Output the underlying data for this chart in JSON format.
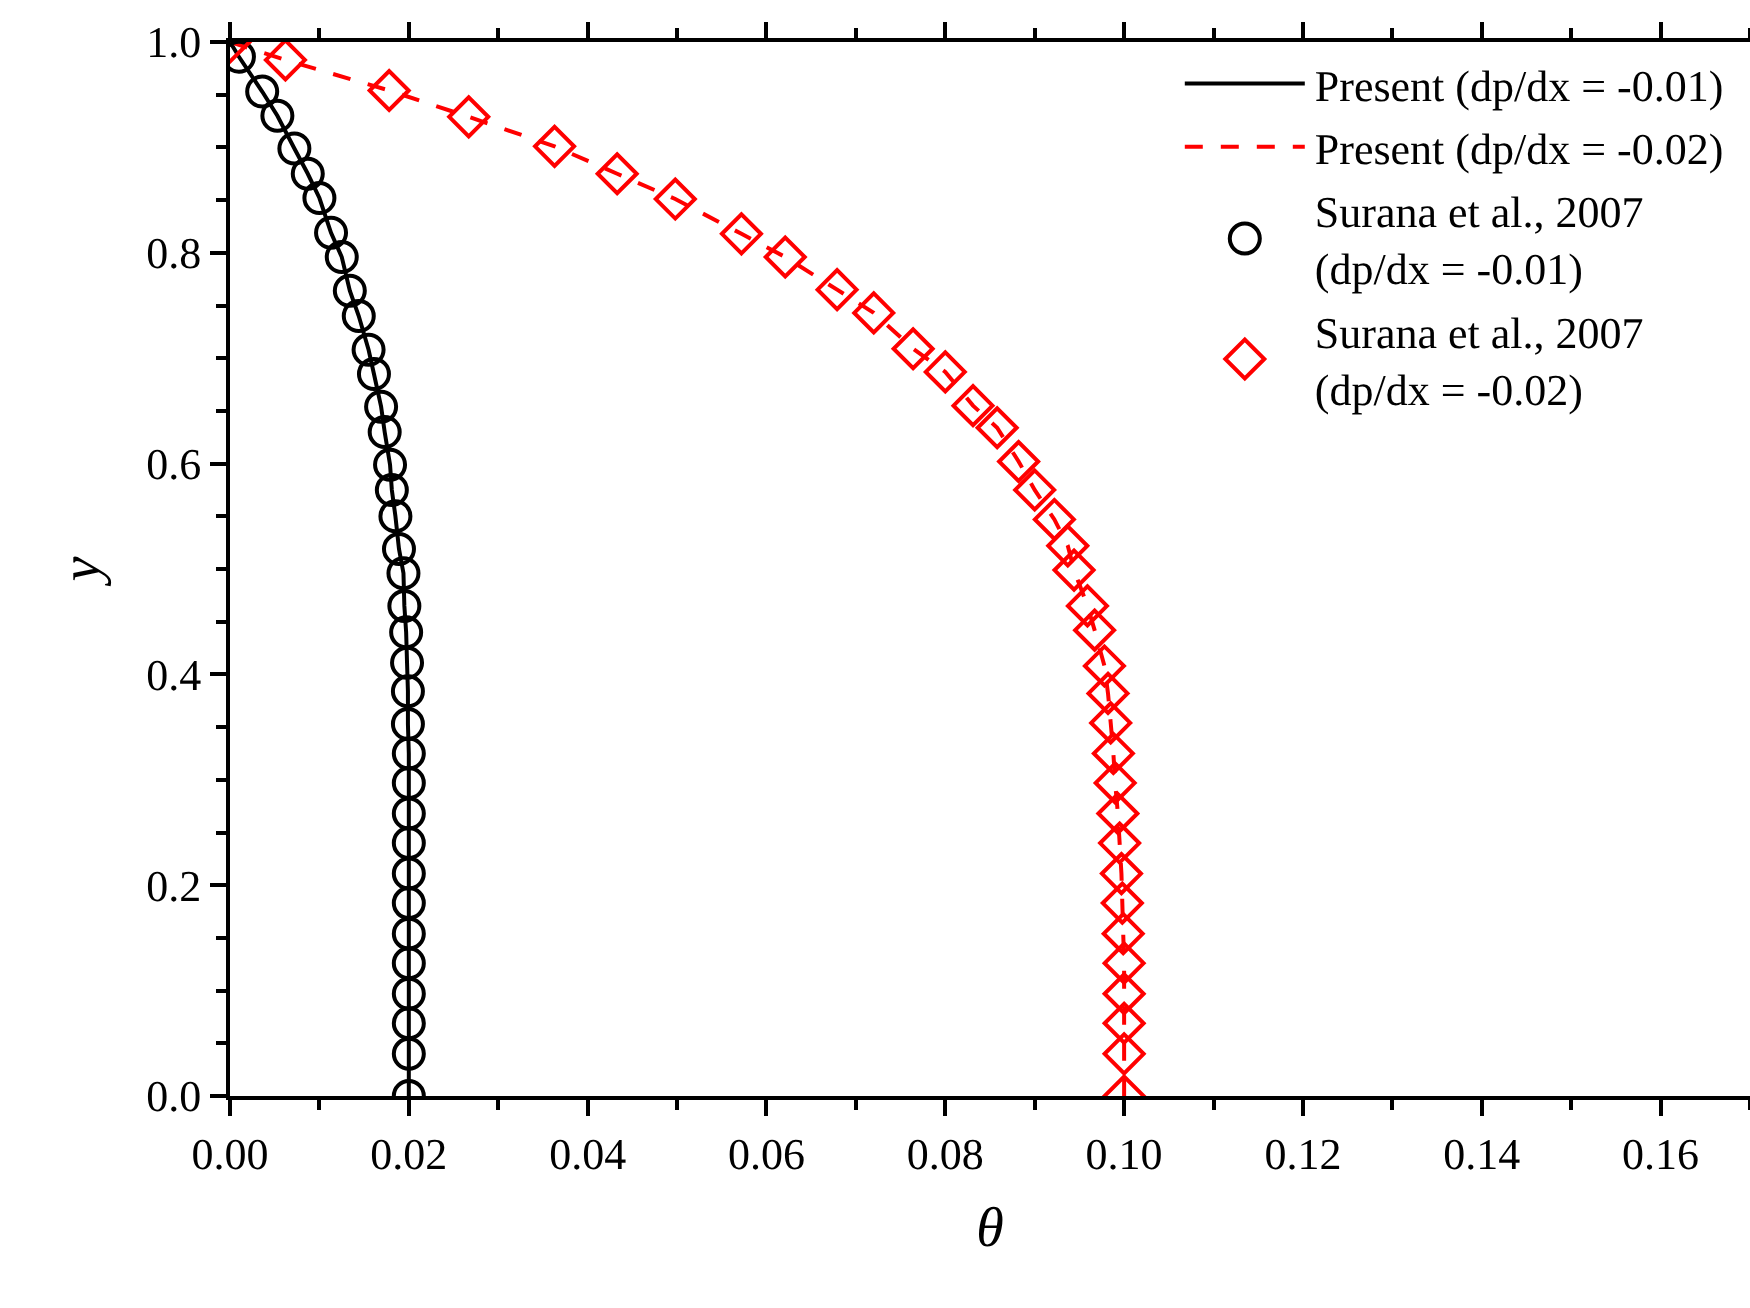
{
  "chart_data": {
    "type": "line",
    "xlabel": "θ",
    "ylabel": "y",
    "xlim": [
      0,
      0.17
    ],
    "ylim": [
      0,
      1.0
    ],
    "xticks": [
      {
        "value": 0,
        "label": "0.00"
      },
      0.02,
      0.04,
      0.06,
      0.08,
      {
        "value": 0.1,
        "label": "0.10"
      },
      0.12,
      0.14,
      0.16
    ],
    "yticks": [
      {
        "value": 0,
        "label": "0.0"
      },
      0.2,
      0.4,
      0.6,
      0.8,
      {
        "value": 1.0,
        "label": "1.0"
      }
    ],
    "grid": false,
    "legend": "top right",
    "series": [
      {
        "name": "Present (dp/dx = -0.01)",
        "line_style": "solid",
        "marker": "none",
        "color": "#000000",
        "x": [
          0,
          0.001,
          0.0036,
          0.0053,
          0.0072,
          0.0087,
          0.01,
          0.0113,
          0.0125,
          0.0134,
          0.0144,
          0.0155,
          0.0161,
          0.0169,
          0.0173,
          0.0179,
          0.0181,
          0.0185,
          0.0189,
          0.0194,
          0.0195,
          0.0197,
          0.0198,
          0.0199,
          0.0199,
          0.02,
          0.02,
          0.02,
          0.02,
          0.02,
          0.02,
          0.02,
          0.02,
          0.02,
          0.02,
          0.02,
          0.02
        ],
        "values": [
          1.0,
          0.986,
          0.953,
          0.93,
          0.899,
          0.875,
          0.852,
          0.819,
          0.796,
          0.764,
          0.74,
          0.708,
          0.685,
          0.654,
          0.63,
          0.599,
          0.575,
          0.55,
          0.519,
          0.496,
          0.465,
          0.44,
          0.411,
          0.384,
          0.353,
          0.325,
          0.297,
          0.268,
          0.24,
          0.211,
          0.183,
          0.154,
          0.126,
          0.097,
          0.069,
          0.04,
          0.0
        ]
      },
      {
        "name": "Present (dp/dx = -0.02)",
        "line_style": "dashed",
        "marker": "none",
        "color": "#ff0000",
        "x": [
          0,
          0.0062,
          0.0178,
          0.0267,
          0.0363,
          0.0433,
          0.0498,
          0.0572,
          0.0621,
          0.0679,
          0.072,
          0.0764,
          0.08,
          0.0831,
          0.0858,
          0.0882,
          0.09,
          0.0922,
          0.0937,
          0.0944,
          0.0959,
          0.0967,
          0.0978,
          0.0982,
          0.0985,
          0.0988,
          0.099,
          0.0993,
          0.0995,
          0.0997,
          0.0998,
          0.0999,
          0.1,
          0.1,
          0.1,
          0.1,
          0.1
        ],
        "values": [
          1.0,
          0.983,
          0.954,
          0.929,
          0.901,
          0.875,
          0.851,
          0.818,
          0.796,
          0.765,
          0.743,
          0.709,
          0.687,
          0.655,
          0.634,
          0.602,
          0.575,
          0.547,
          0.522,
          0.499,
          0.465,
          0.442,
          0.408,
          0.382,
          0.354,
          0.325,
          0.297,
          0.268,
          0.24,
          0.211,
          0.183,
          0.154,
          0.126,
          0.097,
          0.069,
          0.04,
          0.0
        ]
      },
      {
        "name": "Surana et al., 2007\n(dp/dx = -0.01)",
        "type": "scatter",
        "marker": "circle",
        "color": "#000000",
        "x": [
          0.001,
          0.0036,
          0.0053,
          0.0072,
          0.0087,
          0.01,
          0.0113,
          0.0125,
          0.0134,
          0.0144,
          0.0155,
          0.0161,
          0.0169,
          0.0173,
          0.0179,
          0.0181,
          0.0185,
          0.0189,
          0.0194,
          0.0195,
          0.0197,
          0.0198,
          0.0199,
          0.0199,
          0.02,
          0.02,
          0.02,
          0.02,
          0.02,
          0.02,
          0.02,
          0.02,
          0.02,
          0.02,
          0.02,
          0.02
        ],
        "values": [
          0.986,
          0.953,
          0.93,
          0.899,
          0.875,
          0.852,
          0.819,
          0.796,
          0.764,
          0.74,
          0.708,
          0.685,
          0.654,
          0.63,
          0.599,
          0.575,
          0.55,
          0.519,
          0.496,
          0.465,
          0.44,
          0.411,
          0.384,
          0.353,
          0.325,
          0.297,
          0.268,
          0.24,
          0.211,
          0.183,
          0.154,
          0.126,
          0.097,
          0.069,
          0.04,
          0.0
        ]
      },
      {
        "name": "Surana et al., 2007\n(dp/dx = -0.02)",
        "type": "scatter",
        "marker": "diamond",
        "color": "#ff0000",
        "x": [
          0,
          0.0062,
          0.0178,
          0.0267,
          0.0363,
          0.0433,
          0.0498,
          0.0572,
          0.0621,
          0.0679,
          0.072,
          0.0764,
          0.08,
          0.0831,
          0.0858,
          0.0882,
          0.09,
          0.0922,
          0.0937,
          0.0944,
          0.0959,
          0.0967,
          0.0978,
          0.0982,
          0.0985,
          0.0988,
          0.099,
          0.0993,
          0.0995,
          0.0997,
          0.0998,
          0.0999,
          0.1,
          0.1,
          0.1,
          0.1,
          0.1
        ],
        "values": [
          1.0,
          0.983,
          0.954,
          0.929,
          0.901,
          0.875,
          0.851,
          0.818,
          0.796,
          0.765,
          0.743,
          0.709,
          0.687,
          0.655,
          0.634,
          0.602,
          0.575,
          0.547,
          0.522,
          0.499,
          0.465,
          0.442,
          0.408,
          0.382,
          0.354,
          0.325,
          0.297,
          0.268,
          0.24,
          0.211,
          0.183,
          0.154,
          0.126,
          0.097,
          0.069,
          0.04,
          0.0
        ]
      }
    ]
  }
}
